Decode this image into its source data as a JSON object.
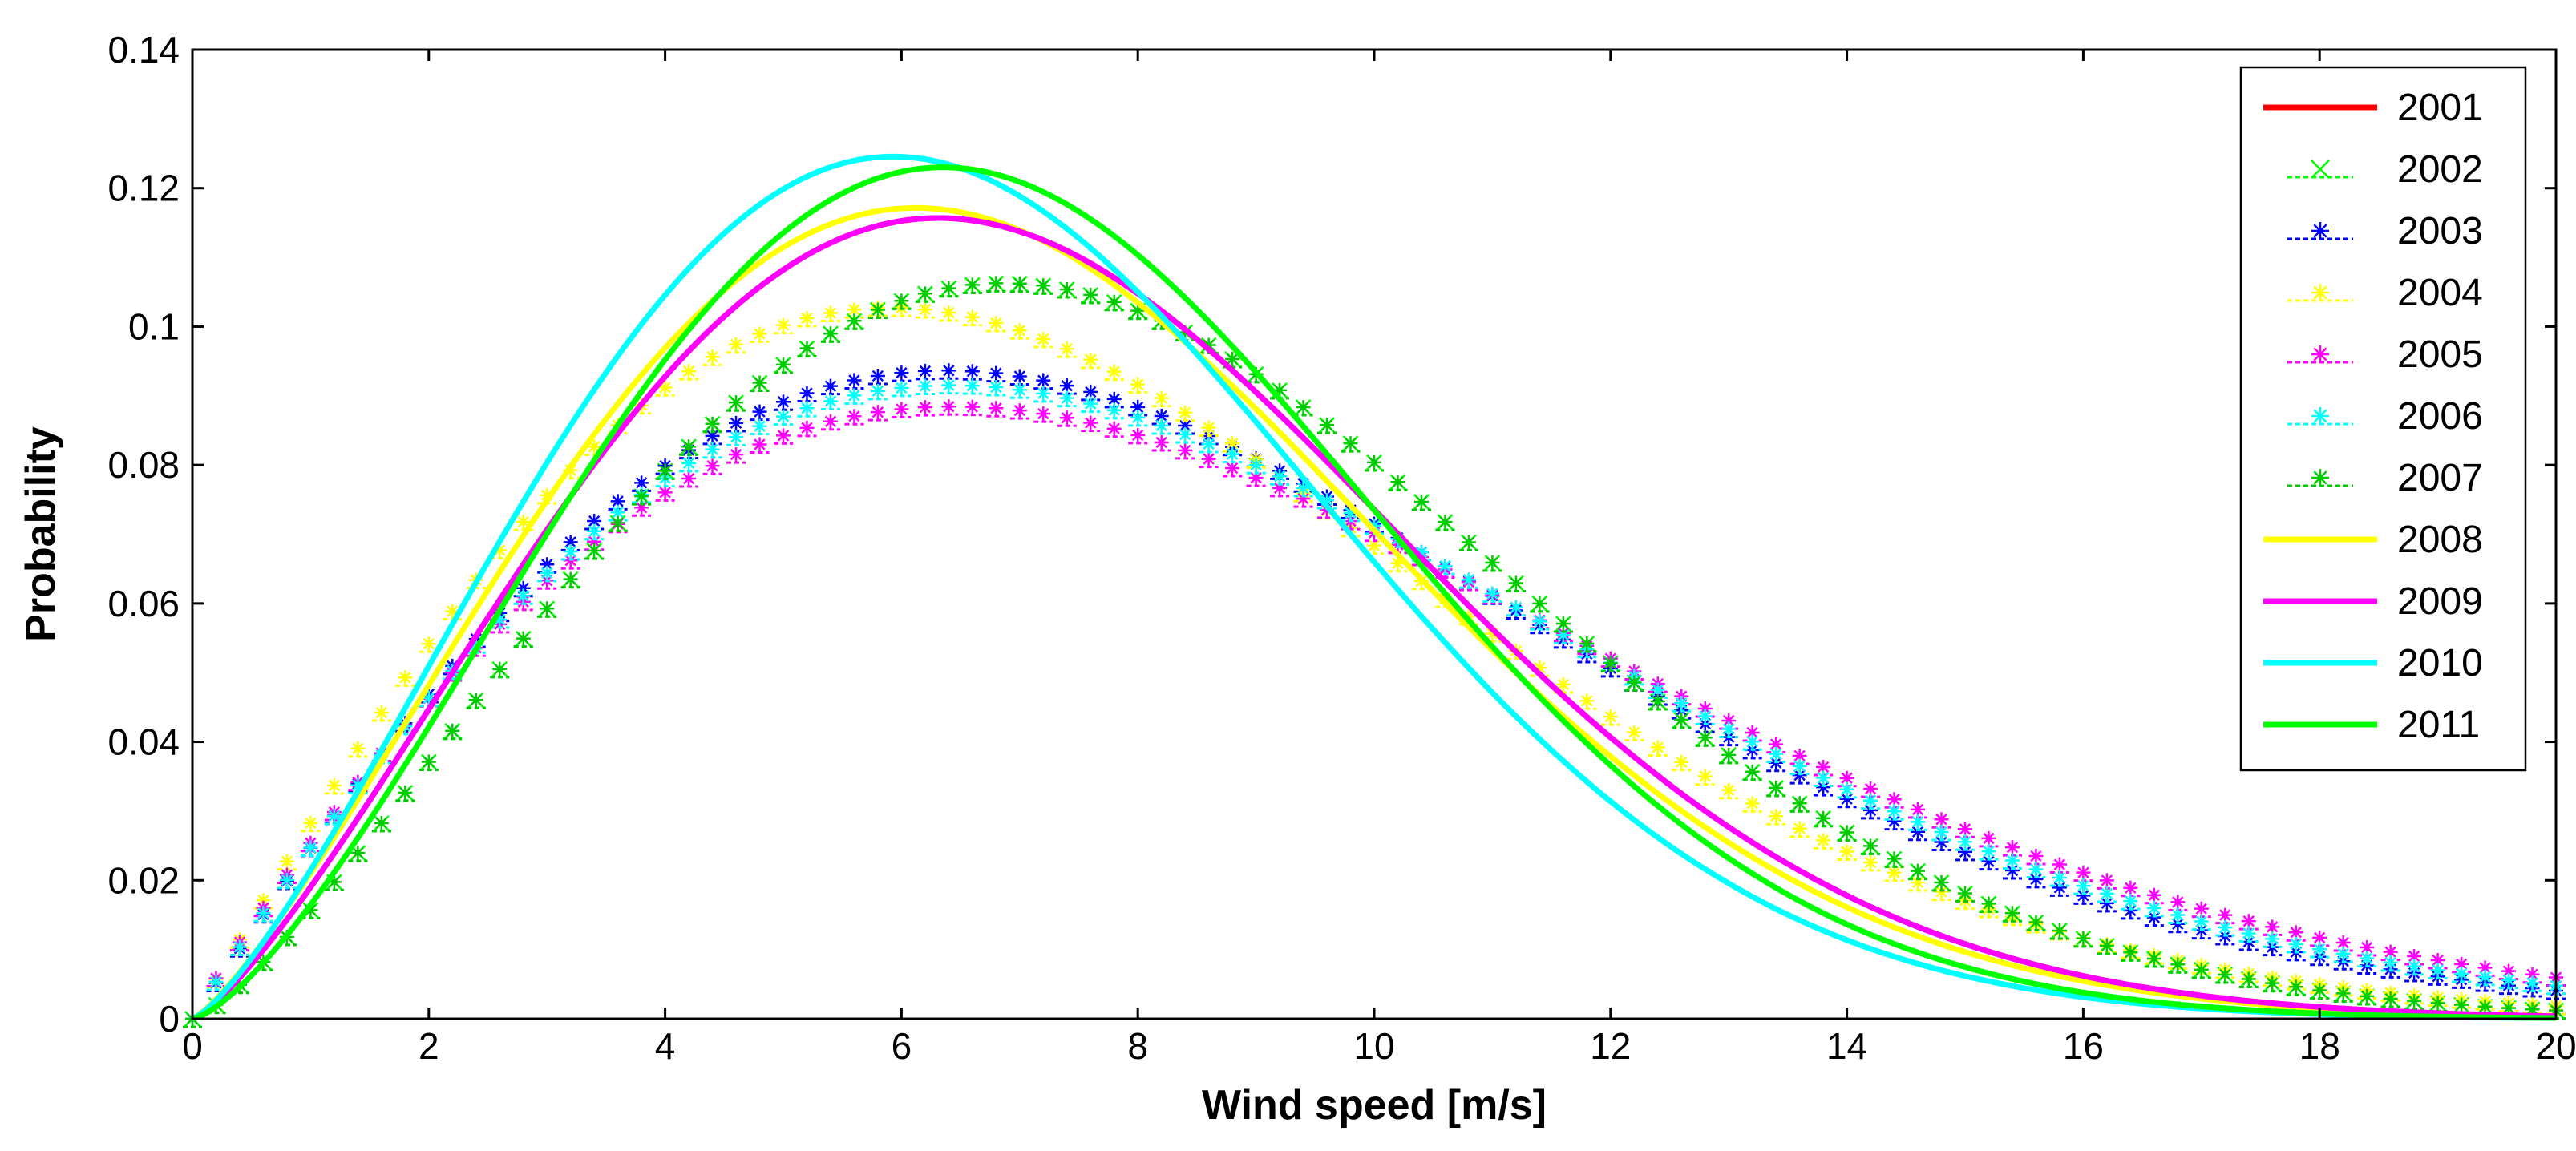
{
  "chart_data": {
    "type": "line",
    "title": "",
    "xlabel": "Wind speed [m/s]",
    "ylabel": "Probability",
    "xlim": [
      0,
      20
    ],
    "ylim": [
      0,
      0.14
    ],
    "xticks": [
      0,
      2,
      4,
      6,
      8,
      10,
      12,
      14,
      16,
      18,
      20
    ],
    "yticks": [
      0,
      0.02,
      0.04,
      0.06,
      0.08,
      0.1,
      0.12,
      0.14
    ],
    "xtick_labels": [
      "0",
      "2",
      "4",
      "6",
      "8",
      "10",
      "12",
      "14",
      "16",
      "18",
      "20"
    ],
    "ytick_labels": [
      "0",
      "0.02",
      "0.04",
      "0.06",
      "0.08",
      "0.1",
      "0.12",
      "0.14"
    ],
    "grid": false,
    "legend_position": "top-right",
    "series": [
      {
        "name": "2001",
        "color": "#FF0000",
        "style": "solid",
        "weibull_shape": 2.28,
        "weibull_scale": 8.13
      },
      {
        "name": "2002",
        "color": "#00FF00",
        "style": "marker-x",
        "weibull_shape": 2.28,
        "weibull_scale": 8.85
      },
      {
        "name": "2003",
        "color": "#0000FF",
        "style": "marker-star",
        "weibull_shape": 1.98,
        "weibull_scale": 9.1
      },
      {
        "name": "2004",
        "color": "#FFFF00",
        "style": "marker-star",
        "weibull_shape": 2.0,
        "weibull_scale": 8.35
      },
      {
        "name": "2005",
        "color": "#FF00FF",
        "style": "marker-star",
        "weibull_shape": 1.92,
        "weibull_scale": 9.45
      },
      {
        "name": "2006",
        "color": "#00FFFF",
        "style": "marker-star",
        "weibull_shape": 1.96,
        "weibull_scale": 9.25
      },
      {
        "name": "2007",
        "color": "#00CC00",
        "style": "marker-star",
        "weibull_shape": 2.28,
        "weibull_scale": 8.85
      },
      {
        "name": "2008",
        "color": "#FFFF00",
        "style": "solid",
        "weibull_shape": 2.25,
        "weibull_scale": 7.95
      },
      {
        "name": "2009",
        "color": "#FF00FF",
        "style": "solid",
        "weibull_shape": 2.28,
        "weibull_scale": 8.13
      },
      {
        "name": "2010",
        "color": "#00FFFF",
        "style": "solid",
        "weibull_shape": 2.3,
        "weibull_scale": 7.6
      },
      {
        "name": "2011",
        "color": "#00FF00",
        "style": "solid",
        "weibull_shape": 2.4,
        "weibull_scale": 7.95
      }
    ]
  }
}
